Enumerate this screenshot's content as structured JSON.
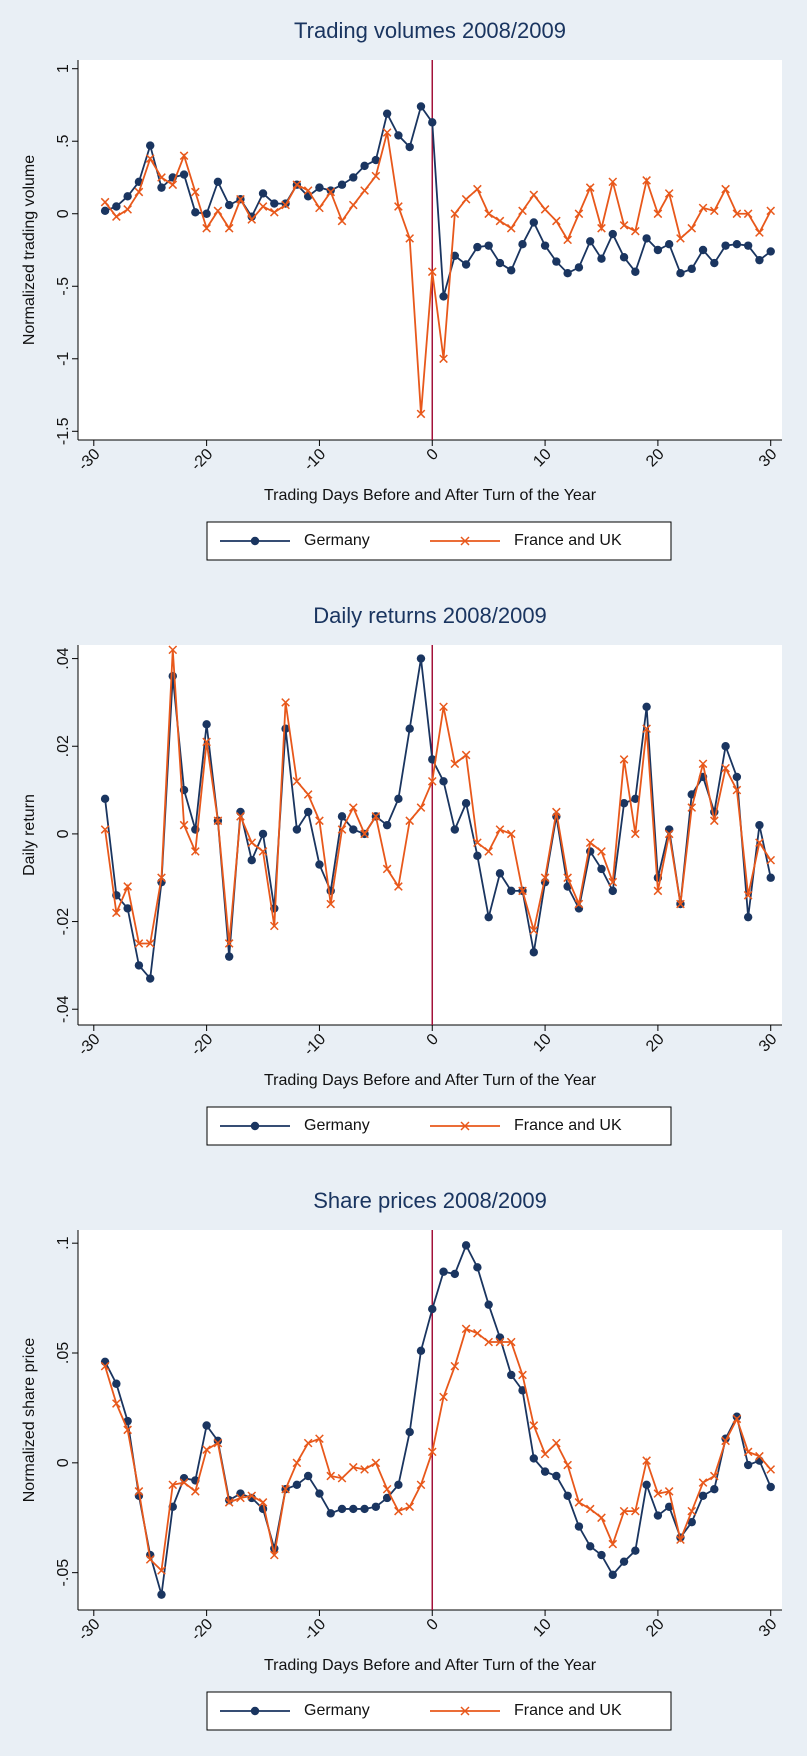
{
  "chart_data": [
    {
      "type": "line",
      "title": "Trading volumes 2008/2009",
      "x_label": "Trading Days Before and After Turn of the Year",
      "y_label": "Normalized trading volume",
      "x": [
        -29,
        -28,
        -27,
        -26,
        -25,
        -24,
        -23,
        -22,
        -21,
        -20,
        -19,
        -18,
        -17,
        -16,
        -15,
        -14,
        -13,
        -12,
        -11,
        -10,
        -9,
        -8,
        -7,
        -6,
        -5,
        -4,
        -3,
        -2,
        -1,
        0,
        1,
        2,
        3,
        4,
        5,
        6,
        7,
        8,
        9,
        10,
        11,
        12,
        13,
        14,
        15,
        16,
        17,
        18,
        19,
        20,
        21,
        22,
        23,
        24,
        25,
        26,
        27,
        28,
        29,
        30
      ],
      "series": [
        {
          "name": "Germany",
          "color": "#1a3560",
          "marker": "circle",
          "values": [
            0.02,
            0.05,
            0.12,
            0.22,
            0.47,
            0.18,
            0.25,
            0.27,
            0.01,
            0.0,
            0.22,
            0.06,
            0.1,
            -0.02,
            0.14,
            0.07,
            0.07,
            0.2,
            0.12,
            0.18,
            0.16,
            0.2,
            0.25,
            0.33,
            0.37,
            0.69,
            0.54,
            0.46,
            0.74,
            0.63,
            -0.57,
            -0.29,
            -0.35,
            -0.23,
            -0.22,
            -0.34,
            -0.39,
            -0.21,
            -0.06,
            -0.22,
            -0.33,
            -0.41,
            -0.37,
            -0.19,
            -0.31,
            -0.14,
            -0.3,
            -0.4,
            -0.17,
            -0.25,
            -0.21,
            -0.41,
            -0.38,
            -0.25,
            -0.34,
            -0.22,
            -0.21,
            -0.22,
            -0.32,
            -0.26
          ]
        },
        {
          "name": "France and UK",
          "color": "#e8581b",
          "marker": "x",
          "values": [
            0.08,
            -0.02,
            0.03,
            0.15,
            0.38,
            0.25,
            0.2,
            0.4,
            0.15,
            -0.1,
            0.02,
            -0.1,
            0.1,
            -0.04,
            0.05,
            0.01,
            0.06,
            0.2,
            0.16,
            0.04,
            0.15,
            -0.05,
            0.06,
            0.16,
            0.26,
            0.56,
            0.05,
            -0.17,
            -1.38,
            -0.4,
            -1.0,
            0.0,
            0.1,
            0.17,
            0.0,
            -0.05,
            -0.1,
            0.02,
            0.13,
            0.03,
            -0.05,
            -0.18,
            0.0,
            0.18,
            -0.1,
            0.22,
            -0.08,
            -0.12,
            0.23,
            0.0,
            0.14,
            -0.17,
            -0.1,
            0.04,
            0.02,
            0.17,
            0.0,
            0.0,
            -0.13,
            0.02
          ]
        }
      ],
      "xlim": [
        -31.4,
        31
      ],
      "xticks": [
        -30,
        -20,
        -10,
        0,
        10,
        20,
        30
      ],
      "ylim": [
        -1.56,
        1.06
      ],
      "yticks": [
        -1.5,
        -1,
        {
          "value": -0.5,
          "label": "-.5"
        },
        0,
        {
          "value": 0.5,
          "label": ".5"
        },
        1
      ],
      "vline": 0,
      "vline_color": "#a3123a",
      "grid": false
    },
    {
      "type": "line",
      "title": "Daily returns 2008/2009",
      "x_label": "Trading Days Before and After Turn of the Year",
      "y_label": "Daily return",
      "x": [
        -29,
        -28,
        -27,
        -26,
        -25,
        -24,
        -23,
        -22,
        -21,
        -20,
        -19,
        -18,
        -17,
        -16,
        -15,
        -14,
        -13,
        -12,
        -11,
        -10,
        -9,
        -8,
        -7,
        -6,
        -5,
        -4,
        -3,
        -2,
        -1,
        0,
        1,
        2,
        3,
        4,
        5,
        6,
        7,
        8,
        9,
        10,
        11,
        12,
        13,
        14,
        15,
        16,
        17,
        18,
        19,
        20,
        21,
        22,
        23,
        24,
        25,
        26,
        27,
        28,
        29,
        30
      ],
      "series": [
        {
          "name": "Germany",
          "color": "#1a3560",
          "marker": "circle",
          "values": [
            0.008,
            -0.014,
            -0.017,
            -0.03,
            -0.033,
            -0.011,
            0.036,
            0.01,
            0.001,
            0.025,
            0.003,
            -0.028,
            0.005,
            -0.006,
            0.0,
            -0.017,
            0.024,
            0.001,
            0.005,
            -0.007,
            -0.013,
            0.004,
            0.001,
            0.0,
            0.004,
            0.002,
            0.008,
            0.024,
            0.04,
            0.017,
            0.012,
            0.001,
            0.007,
            -0.005,
            -0.019,
            -0.009,
            -0.013,
            -0.013,
            -0.027,
            -0.011,
            0.004,
            -0.012,
            -0.017,
            -0.004,
            -0.008,
            -0.013,
            0.007,
            0.008,
            0.029,
            -0.01,
            0.001,
            -0.016,
            0.009,
            0.013,
            0.005,
            0.02,
            0.013,
            -0.019,
            0.002,
            -0.01
          ]
        },
        {
          "name": "France and UK",
          "color": "#e8581b",
          "marker": "x",
          "values": [
            0.001,
            -0.018,
            -0.012,
            -0.025,
            -0.025,
            -0.01,
            0.042,
            0.002,
            -0.004,
            0.021,
            0.003,
            -0.025,
            0.004,
            -0.002,
            -0.004,
            -0.021,
            0.03,
            0.012,
            0.009,
            0.003,
            -0.016,
            0.001,
            0.006,
            0.0,
            0.004,
            -0.008,
            -0.012,
            0.003,
            0.006,
            0.012,
            0.029,
            0.016,
            0.018,
            -0.002,
            -0.004,
            0.001,
            0.0,
            -0.013,
            -0.022,
            -0.01,
            0.005,
            -0.01,
            -0.016,
            -0.002,
            -0.004,
            -0.011,
            0.017,
            0.0,
            0.024,
            -0.013,
            0.0,
            -0.016,
            0.006,
            0.016,
            0.003,
            0.015,
            0.01,
            -0.014,
            -0.002,
            -0.006
          ]
        }
      ],
      "xlim": [
        -31.4,
        31
      ],
      "xticks": [
        -30,
        -20,
        -10,
        0,
        10,
        20,
        30
      ],
      "ylim": [
        -0.0436,
        0.0431
      ],
      "yticks": [
        {
          "value": -0.04,
          "label": "-.04"
        },
        {
          "value": -0.02,
          "label": "-.02"
        },
        0,
        {
          "value": 0.02,
          "label": ".02"
        },
        {
          "value": 0.04,
          "label": ".04"
        }
      ],
      "vline": 0,
      "vline_color": "#a3123a",
      "grid": false
    },
    {
      "type": "line",
      "title": "Share prices 2008/2009",
      "x_label": "Trading Days Before and After Turn of the Year",
      "y_label": "Normalized share price",
      "x": [
        -29,
        -28,
        -27,
        -26,
        -25,
        -24,
        -23,
        -22,
        -21,
        -20,
        -19,
        -18,
        -17,
        -16,
        -15,
        -14,
        -13,
        -12,
        -11,
        -10,
        -9,
        -8,
        -7,
        -6,
        -5,
        -4,
        -3,
        -2,
        -1,
        0,
        1,
        2,
        3,
        4,
        5,
        6,
        7,
        8,
        9,
        10,
        11,
        12,
        13,
        14,
        15,
        16,
        17,
        18,
        19,
        20,
        21,
        22,
        23,
        24,
        25,
        26,
        27,
        28,
        29,
        30
      ],
      "series": [
        {
          "name": "Germany",
          "color": "#1a3560",
          "marker": "circle",
          "values": [
            0.046,
            0.036,
            0.019,
            -0.015,
            -0.042,
            -0.06,
            -0.02,
            -0.007,
            -0.008,
            0.017,
            0.01,
            -0.017,
            -0.014,
            -0.016,
            -0.021,
            -0.039,
            -0.012,
            -0.01,
            -0.006,
            -0.014,
            -0.023,
            -0.021,
            -0.021,
            -0.021,
            -0.02,
            -0.016,
            -0.01,
            0.014,
            0.051,
            0.07,
            0.087,
            0.086,
            0.099,
            0.089,
            0.072,
            0.057,
            0.04,
            0.033,
            0.002,
            -0.004,
            -0.006,
            -0.015,
            -0.029,
            -0.038,
            -0.042,
            -0.051,
            -0.045,
            -0.04,
            -0.01,
            -0.024,
            -0.02,
            -0.034,
            -0.027,
            -0.015,
            -0.012,
            0.011,
            0.021,
            -0.001,
            0.001,
            -0.011
          ]
        },
        {
          "name": "France and UK",
          "color": "#e8581b",
          "marker": "x",
          "values": [
            0.044,
            0.027,
            0.015,
            -0.013,
            -0.044,
            -0.049,
            -0.01,
            -0.009,
            -0.013,
            0.006,
            0.009,
            -0.018,
            -0.016,
            -0.015,
            -0.018,
            -0.042,
            -0.012,
            0.0,
            0.009,
            0.011,
            -0.006,
            -0.007,
            -0.002,
            -0.003,
            0.0,
            -0.012,
            -0.022,
            -0.02,
            -0.01,
            0.005,
            0.03,
            0.044,
            0.061,
            0.059,
            0.055,
            0.055,
            0.055,
            0.04,
            0.017,
            0.004,
            0.009,
            -0.001,
            -0.018,
            -0.021,
            -0.025,
            -0.037,
            -0.022,
            -0.022,
            0.001,
            -0.014,
            -0.013,
            -0.035,
            -0.022,
            -0.009,
            -0.006,
            0.01,
            0.02,
            0.005,
            0.003,
            -0.003
          ]
        }
      ],
      "xlim": [
        -31.4,
        31
      ],
      "xticks": [
        -30,
        -20,
        -10,
        0,
        10,
        20,
        30
      ],
      "ylim": [
        -0.067,
        0.106
      ],
      "yticks": [
        {
          "value": -0.05,
          "label": "-.05"
        },
        0,
        {
          "value": 0.05,
          "label": ".05"
        },
        {
          "value": 0.1,
          "label": ".1"
        }
      ],
      "vline": 0,
      "vline_color": "#a3123a",
      "grid": false
    }
  ]
}
